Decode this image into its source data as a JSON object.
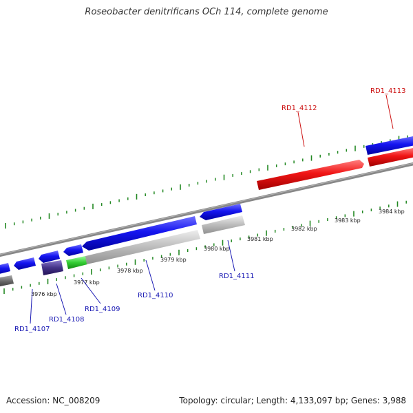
{
  "title": "Roseobacter denitrificans OCh 114, complete genome",
  "footer": {
    "accession": "Accession: NC_008209",
    "stats": "Topology: circular; Length: 4,133,097 bp; Genes: 3,988"
  },
  "colors": {
    "forward_gene": "#1010ee",
    "reverse_gene_gray": "#b4b4b4",
    "highlight_red": "#ee1010",
    "highlight_green": "#33cc33",
    "highlight_purple": "#443388",
    "backbone": "#888888",
    "tick": "#228822",
    "label_blue": "#1a1ab4",
    "label_red": "#cc1111"
  },
  "scale_labels": [
    "3976 kbp",
    "3977 kbp",
    "3978 kbp",
    "3979 kbp",
    "3980 kbp",
    "3981 kbp",
    "3982 kbp",
    "3983 kbp",
    "3984 kbp"
  ],
  "gene_labels": [
    {
      "name": "RD1_4107",
      "color": "blue"
    },
    {
      "name": "RD1_4108",
      "color": "blue"
    },
    {
      "name": "RD1_4109",
      "color": "blue"
    },
    {
      "name": "RD1_4110",
      "color": "blue"
    },
    {
      "name": "RD1_4111",
      "color": "blue"
    },
    {
      "name": "RD1_4112",
      "color": "red"
    },
    {
      "name": "RD1_4113",
      "color": "red"
    }
  ]
}
